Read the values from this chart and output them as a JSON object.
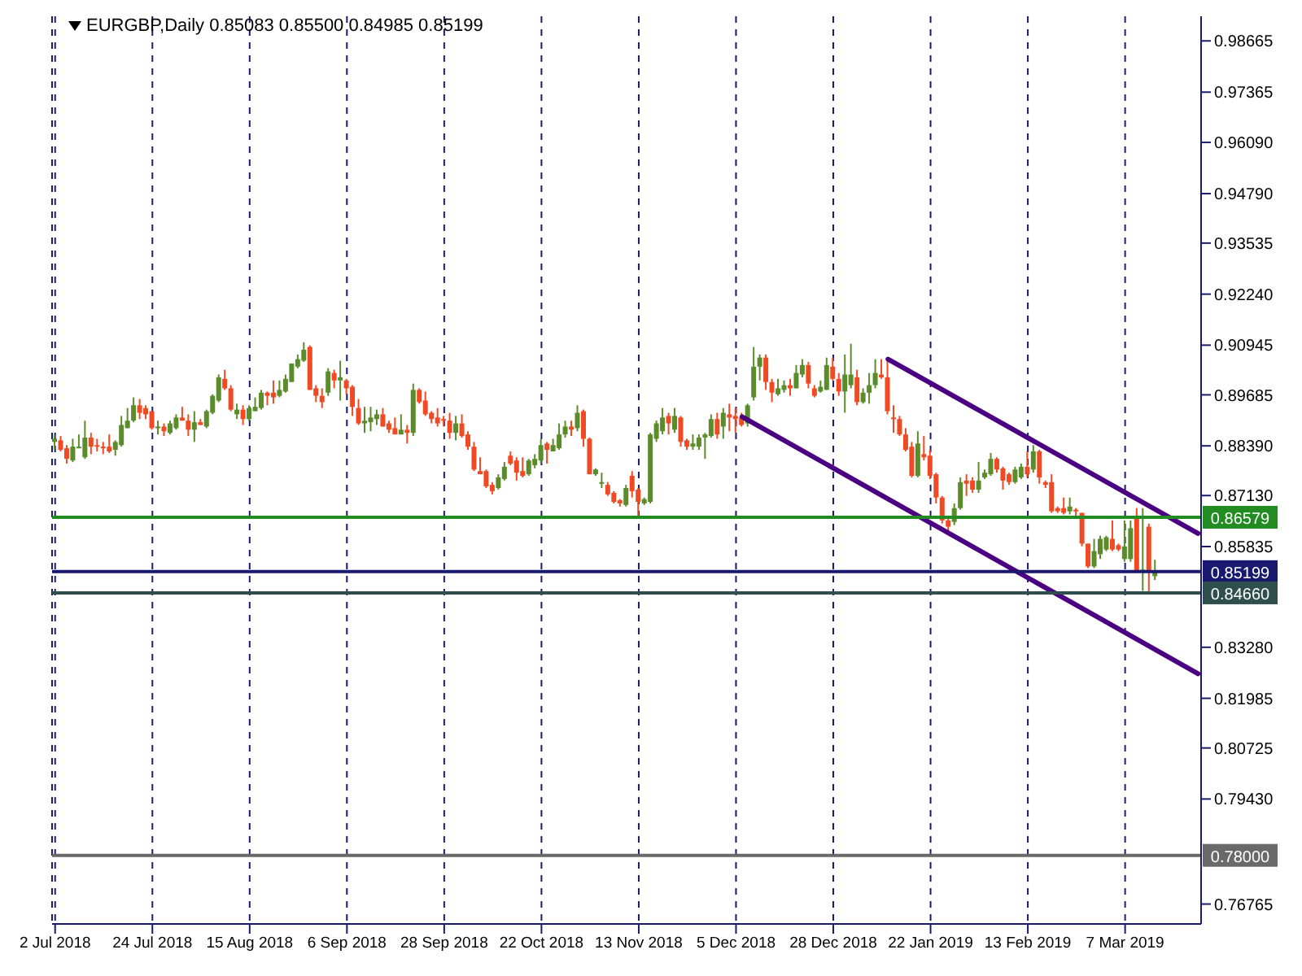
{
  "chart_data": {
    "type": "candlestick",
    "title": "EURGBP,Daily  0.85083 0.85500 0.84985 0.85199",
    "categories": [
      "2 Jul 2018",
      null,
      null,
      null,
      null,
      null,
      null,
      null,
      null,
      null,
      null,
      null,
      null,
      null,
      null,
      null,
      "24 Jul 2018",
      null,
      null,
      null,
      null,
      null,
      null,
      null,
      null,
      null,
      null,
      null,
      null,
      null,
      null,
      null,
      "15 Aug 2018",
      null,
      null,
      null,
      null,
      null,
      null,
      null,
      null,
      null,
      null,
      null,
      null,
      null,
      null,
      null,
      "6 Sep 2018",
      null,
      null,
      null,
      null,
      null,
      null,
      null,
      null,
      null,
      null,
      null,
      null,
      null,
      null,
      null,
      "28 Sep 2018",
      null,
      null,
      null,
      null,
      null,
      null,
      null,
      null,
      null,
      null,
      null,
      null,
      null,
      null,
      null,
      "22 Oct 2018",
      null,
      null,
      null,
      null,
      null,
      null,
      null,
      null,
      null,
      null,
      null,
      null,
      null,
      null,
      null,
      "13 Nov 2018",
      null,
      null,
      null,
      null,
      null,
      null,
      null,
      null,
      null,
      null,
      null,
      null,
      null,
      null,
      null,
      "5 Dec 2018",
      null,
      null,
      null,
      null,
      null,
      null,
      null,
      null,
      null,
      null,
      null,
      null,
      null,
      null,
      null,
      "28 Dec 2018",
      null,
      null,
      null,
      null,
      null,
      null,
      null,
      null,
      null,
      null,
      null,
      null,
      null,
      null,
      null,
      "22 Jan 2019",
      null,
      null,
      null,
      null,
      null,
      null,
      null,
      null,
      null,
      null,
      null,
      null,
      null,
      null,
      null,
      "13 Feb 2019",
      null,
      null,
      null,
      null,
      null,
      null,
      null,
      null,
      null,
      null,
      null,
      null,
      null,
      null,
      null,
      "7 Mar 2019",
      null,
      null,
      null,
      null,
      null,
      null,
      null,
      null,
      null,
      null,
      null,
      null
    ],
    "ohlc": [
      [
        0.8849,
        0.8868,
        0.8829,
        0.8857
      ],
      [
        0.8853,
        0.8864,
        0.8825,
        0.8829
      ],
      [
        0.8833,
        0.8841,
        0.8794,
        0.8806
      ],
      [
        0.8802,
        0.8857,
        0.8798,
        0.8837
      ],
      [
        0.8833,
        0.8868,
        0.8833,
        0.8837
      ],
      [
        0.881,
        0.8903,
        0.8806,
        0.886
      ],
      [
        0.886,
        0.8872,
        0.8818,
        0.8837
      ],
      [
        0.8841,
        0.8857,
        0.8825,
        0.8837
      ],
      [
        0.8837,
        0.8849,
        0.8818,
        0.8833
      ],
      [
        0.8837,
        0.8868,
        0.8821,
        0.8825
      ],
      [
        0.8829,
        0.8853,
        0.8814,
        0.8849
      ],
      [
        0.8841,
        0.8915,
        0.8837,
        0.8892
      ],
      [
        0.8884,
        0.8935,
        0.8884,
        0.8903
      ],
      [
        0.8903,
        0.8962,
        0.8899,
        0.8942
      ],
      [
        0.8942,
        0.8958,
        0.8907,
        0.8923
      ],
      [
        0.8935,
        0.8942,
        0.8907,
        0.8919
      ],
      [
        0.8927,
        0.8927,
        0.888,
        0.8884
      ],
      [
        0.8884,
        0.8903,
        0.8868,
        0.8888
      ],
      [
        0.8888,
        0.8896,
        0.8864,
        0.8876
      ],
      [
        0.8872,
        0.8903,
        0.8868,
        0.8896
      ],
      [
        0.8884,
        0.8919,
        0.888,
        0.8911
      ],
      [
        0.8911,
        0.8938,
        0.8903,
        0.8903
      ],
      [
        0.8903,
        0.8919,
        0.8864,
        0.888
      ],
      [
        0.888,
        0.8927,
        0.8849,
        0.8899
      ],
      [
        0.8899,
        0.8907,
        0.8892,
        0.8892
      ],
      [
        0.8888,
        0.8931,
        0.8884,
        0.8927
      ],
      [
        0.8923,
        0.897,
        0.8919,
        0.8966
      ],
      [
        0.8954,
        0.902,
        0.895,
        0.9013
      ],
      [
        0.9009,
        0.9032,
        0.8981,
        0.8985
      ],
      [
        0.8985,
        0.8993,
        0.8927,
        0.8931
      ],
      [
        0.8919,
        0.8946,
        0.8907,
        0.8931
      ],
      [
        0.8931,
        0.8942,
        0.8892,
        0.8907
      ],
      [
        0.8907,
        0.8942,
        0.8903,
        0.8935
      ],
      [
        0.8927,
        0.8962,
        0.8927,
        0.8938
      ],
      [
        0.8935,
        0.8981,
        0.8931,
        0.8974
      ],
      [
        0.8974,
        0.8977,
        0.8942,
        0.8966
      ],
      [
        0.8974,
        0.9005,
        0.8946,
        0.8962
      ],
      [
        0.8966,
        0.9005,
        0.8962,
        0.8981
      ],
      [
        0.8977,
        0.902,
        0.8974,
        0.9009
      ],
      [
        0.9001,
        0.9048,
        0.9001,
        0.9048
      ],
      [
        0.904,
        0.9071,
        0.9036,
        0.9059
      ],
      [
        0.9055,
        0.9102,
        0.9052,
        0.9083
      ],
      [
        0.909,
        0.9094,
        0.8981,
        0.8981
      ],
      [
        0.8985,
        0.8993,
        0.895,
        0.8966
      ],
      [
        0.8966,
        0.8985,
        0.8935,
        0.895
      ],
      [
        0.8974,
        0.9036,
        0.8966,
        0.9028
      ],
      [
        0.9024,
        0.9032,
        0.8985,
        0.9005
      ],
      [
        0.9005,
        0.9055,
        0.8954,
        0.9013
      ],
      [
        0.9005,
        0.9009,
        0.897,
        0.8985
      ],
      [
        0.8989,
        0.8993,
        0.8915,
        0.8938
      ],
      [
        0.8935,
        0.8958,
        0.8892,
        0.8896
      ],
      [
        0.8896,
        0.8938,
        0.8872,
        0.8903
      ],
      [
        0.8899,
        0.8938,
        0.8876,
        0.8911
      ],
      [
        0.8907,
        0.8931,
        0.8892,
        0.8919
      ],
      [
        0.8919,
        0.8935,
        0.8888,
        0.8888
      ],
      [
        0.8896,
        0.8903,
        0.8872,
        0.888
      ],
      [
        0.8884,
        0.8911,
        0.8868,
        0.8868
      ],
      [
        0.8868,
        0.8919,
        0.8868,
        0.888
      ],
      [
        0.888,
        0.8892,
        0.8845,
        0.8872
      ],
      [
        0.8872,
        0.8997,
        0.8864,
        0.8981
      ],
      [
        0.8981,
        0.8985,
        0.8946,
        0.895
      ],
      [
        0.8954,
        0.8977,
        0.8915,
        0.8919
      ],
      [
        0.8923,
        0.8927,
        0.8896,
        0.8907
      ],
      [
        0.8911,
        0.8935,
        0.8888,
        0.8896
      ],
      [
        0.8907,
        0.8915,
        0.8888,
        0.8903
      ],
      [
        0.8903,
        0.8923,
        0.8857,
        0.8872
      ],
      [
        0.8872,
        0.8915,
        0.8853,
        0.8896
      ],
      [
        0.8896,
        0.8919,
        0.886,
        0.8864
      ],
      [
        0.8868,
        0.8876,
        0.8829,
        0.8837
      ],
      [
        0.8837,
        0.8849,
        0.8775,
        0.8779
      ],
      [
        0.8775,
        0.881,
        0.8767,
        0.8767
      ],
      [
        0.8775,
        0.8779,
        0.8732,
        0.8736
      ],
      [
        0.874,
        0.8747,
        0.8716,
        0.8724
      ],
      [
        0.8732,
        0.8767,
        0.8728,
        0.8759
      ],
      [
        0.8755,
        0.8798,
        0.8751,
        0.8786
      ],
      [
        0.8814,
        0.8825,
        0.879,
        0.8794
      ],
      [
        0.8802,
        0.881,
        0.8751,
        0.8771
      ],
      [
        0.8775,
        0.881,
        0.8759,
        0.8763
      ],
      [
        0.8767,
        0.8806,
        0.8763,
        0.8802
      ],
      [
        0.879,
        0.8818,
        0.8782,
        0.8806
      ],
      [
        0.8802,
        0.8857,
        0.8794,
        0.8841
      ],
      [
        0.8845,
        0.8849,
        0.8794,
        0.8829
      ],
      [
        0.8825,
        0.8857,
        0.8825,
        0.8841
      ],
      [
        0.8833,
        0.8896,
        0.8829,
        0.8868
      ],
      [
        0.8868,
        0.8903,
        0.886,
        0.8888
      ],
      [
        0.8888,
        0.8903,
        0.8864,
        0.888
      ],
      [
        0.8884,
        0.8942,
        0.8876,
        0.8923
      ],
      [
        0.8927,
        0.8931,
        0.8837,
        0.8857
      ],
      [
        0.8857,
        0.886,
        0.8767,
        0.8767
      ],
      [
        0.8767,
        0.8782,
        0.8763,
        0.8779
      ],
      [
        0.8743,
        0.8771,
        0.8732,
        0.8747
      ],
      [
        0.874,
        0.8747,
        0.8712,
        0.8716
      ],
      [
        0.872,
        0.8724,
        0.8693,
        0.8697
      ],
      [
        0.8701,
        0.8704,
        0.8685,
        0.8693
      ],
      [
        0.8689,
        0.874,
        0.8685,
        0.8732
      ],
      [
        0.8763,
        0.8775,
        0.8708,
        0.8724
      ],
      [
        0.8728,
        0.8732,
        0.8654,
        0.8697
      ],
      [
        0.8693,
        0.8708,
        0.8689,
        0.8704
      ],
      [
        0.8697,
        0.8872,
        0.8693,
        0.8868
      ],
      [
        0.8857,
        0.8903,
        0.8849,
        0.8896
      ],
      [
        0.8876,
        0.8935,
        0.8868,
        0.8911
      ],
      [
        0.8915,
        0.8923,
        0.8868,
        0.8896
      ],
      [
        0.888,
        0.8935,
        0.8872,
        0.8915
      ],
      [
        0.8911,
        0.8915,
        0.8837,
        0.8849
      ],
      [
        0.8853,
        0.8857,
        0.8829,
        0.8837
      ],
      [
        0.8837,
        0.8868,
        0.8829,
        0.8845
      ],
      [
        0.8837,
        0.8868,
        0.8829,
        0.886
      ],
      [
        0.886,
        0.8872,
        0.8806,
        0.8868
      ],
      [
        0.8864,
        0.8919,
        0.886,
        0.8907
      ],
      [
        0.8907,
        0.8923,
        0.8857,
        0.8868
      ],
      [
        0.8888,
        0.8935,
        0.8857,
        0.8923
      ],
      [
        0.8919,
        0.8946,
        0.8876,
        0.8911
      ],
      [
        0.8915,
        0.8935,
        0.8872,
        0.8907
      ],
      [
        0.8911,
        0.8923,
        0.8888,
        0.8892
      ],
      [
        0.8896,
        0.8946,
        0.8888,
        0.8942
      ],
      [
        0.8962,
        0.909,
        0.8954,
        0.904
      ],
      [
        0.904,
        0.9071,
        0.9005,
        0.9063
      ],
      [
        0.9063,
        0.9071,
        0.8981,
        0.9001
      ],
      [
        0.9001,
        0.9009,
        0.895,
        0.8974
      ],
      [
        0.897,
        0.9009,
        0.8966,
        0.8985
      ],
      [
        0.8981,
        0.9005,
        0.8974,
        0.8993
      ],
      [
        0.8993,
        0.9009,
        0.8966,
        0.8985
      ],
      [
        0.8985,
        0.9044,
        0.8985,
        0.9024
      ],
      [
        0.902,
        0.9059,
        0.9013,
        0.9044
      ],
      [
        0.9044,
        0.9052,
        0.8985,
        0.8997
      ],
      [
        0.8985,
        0.8993,
        0.8962,
        0.8966
      ],
      [
        0.8977,
        0.9005,
        0.8974,
        0.8989
      ],
      [
        0.8981,
        0.9063,
        0.8981,
        0.9044
      ],
      [
        0.904,
        0.9063,
        0.9005,
        0.9009
      ],
      [
        0.9009,
        0.9024,
        0.8966,
        0.8977
      ],
      [
        0.8977,
        0.9071,
        0.8923,
        0.902
      ],
      [
        0.8993,
        0.9098,
        0.8985,
        0.902
      ],
      [
        0.9013,
        0.9032,
        0.8942,
        0.895
      ],
      [
        0.895,
        0.8985,
        0.8946,
        0.8974
      ],
      [
        0.8974,
        0.9024,
        0.8946,
        0.8993
      ],
      [
        0.8993,
        0.9059,
        0.8985,
        0.9024
      ],
      [
        0.902,
        0.9059,
        0.9009,
        0.9013
      ],
      [
        0.9013,
        0.9063,
        0.8919,
        0.8927
      ],
      [
        0.8911,
        0.8942,
        0.8872,
        0.8907
      ],
      [
        0.8907,
        0.8915,
        0.8864,
        0.8868
      ],
      [
        0.8868,
        0.8884,
        0.8825,
        0.8829
      ],
      [
        0.8837,
        0.8849,
        0.8759,
        0.8763
      ],
      [
        0.8763,
        0.8876,
        0.8759,
        0.8845
      ],
      [
        0.8818,
        0.8864,
        0.8802,
        0.881
      ],
      [
        0.8814,
        0.8829,
        0.8755,
        0.8763
      ],
      [
        0.8767,
        0.8771,
        0.8693,
        0.8708
      ],
      [
        0.8708,
        0.8712,
        0.8642,
        0.865
      ],
      [
        0.865,
        0.8658,
        0.8615,
        0.8634
      ],
      [
        0.8646,
        0.8693,
        0.8638,
        0.8681
      ],
      [
        0.8681,
        0.8759,
        0.8677,
        0.8747
      ],
      [
        0.8751,
        0.8767,
        0.8712,
        0.8743
      ],
      [
        0.8751,
        0.8759,
        0.872,
        0.8728
      ],
      [
        0.8728,
        0.8798,
        0.872,
        0.8751
      ],
      [
        0.8759,
        0.8779,
        0.8755,
        0.8771
      ],
      [
        0.8767,
        0.8821,
        0.8763,
        0.8806
      ],
      [
        0.8806,
        0.881,
        0.8771,
        0.8779
      ],
      [
        0.8782,
        0.8786,
        0.8728,
        0.8751
      ],
      [
        0.8767,
        0.8771,
        0.874,
        0.8747
      ],
      [
        0.8747,
        0.8786,
        0.8743,
        0.8779
      ],
      [
        0.8759,
        0.8794,
        0.8755,
        0.8786
      ],
      [
        0.8786,
        0.8825,
        0.8759,
        0.8767
      ],
      [
        0.8779,
        0.8841,
        0.8771,
        0.8825
      ],
      [
        0.8825,
        0.8829,
        0.8743,
        0.8759
      ],
      [
        0.8747,
        0.8751,
        0.8732,
        0.874
      ],
      [
        0.8747,
        0.8767,
        0.8669,
        0.8673
      ],
      [
        0.8681,
        0.8685,
        0.8669,
        0.8673
      ],
      [
        0.8681,
        0.8708,
        0.8665,
        0.8669
      ],
      [
        0.8673,
        0.8708,
        0.8665,
        0.8685
      ],
      [
        0.8677,
        0.8681,
        0.8662,
        0.8673
      ],
      [
        0.8669,
        0.8669,
        0.8584,
        0.8591
      ],
      [
        0.8591,
        0.8591,
        0.8529,
        0.8533
      ],
      [
        0.8533,
        0.8603,
        0.8529,
        0.8572
      ],
      [
        0.8564,
        0.8611,
        0.8552,
        0.8603
      ],
      [
        0.8576,
        0.8611,
        0.8572,
        0.8607
      ],
      [
        0.8603,
        0.865,
        0.8572,
        0.8576
      ],
      [
        0.8587,
        0.8591,
        0.8572,
        0.8576
      ],
      [
        0.8552,
        0.865,
        0.8545,
        0.8584
      ],
      [
        0.8552,
        0.865,
        0.8545,
        0.863
      ],
      [
        0.8654,
        0.8681,
        0.8517,
        0.8521
      ],
      [
        0.8521,
        0.8681,
        0.8471,
        0.8525
      ],
      [
        0.8634,
        0.8642,
        0.8467,
        0.8521
      ],
      [
        0.85083,
        0.855,
        0.84985,
        0.85199
      ],
      null,
      null,
      null,
      null,
      null,
      null,
      null
    ],
    "colors": [
      "#5b8c2c",
      "#f04a25",
      "#f04a25",
      "#5b8c2c",
      "#5b8c2c",
      "#5b8c2c",
      "#f04a25",
      "#f04a25",
      "#f04a25",
      "#f04a25",
      "#5b8c2c",
      "#5b8c2c",
      "#5b8c2c",
      "#5b8c2c",
      "#f04a25",
      "#f04a25",
      "#f04a25",
      "#5b8c2c",
      "#f04a25",
      "#5b8c2c",
      "#5b8c2c",
      "#f04a25",
      "#f04a25",
      "#5b8c2c",
      "#f04a25",
      "#5b8c2c",
      "#5b8c2c",
      "#5b8c2c",
      "#f04a25",
      "#f04a25",
      "#5b8c2c",
      "#f04a25",
      "#5b8c2c",
      "#5b8c2c",
      "#5b8c2c",
      "#f04a25",
      "#f04a25",
      "#5b8c2c",
      "#5b8c2c",
      "#5b8c2c",
      "#5b8c2c",
      "#5b8c2c",
      "#f04a25",
      "#f04a25",
      "#f04a25",
      "#5b8c2c",
      "#f04a25",
      "#5b8c2c",
      "#f04a25",
      "#f04a25",
      "#f04a25",
      "#5b8c2c",
      "#5b8c2c",
      "#5b8c2c",
      "#f04a25",
      "#f04a25",
      "#f04a25",
      "#5b8c2c",
      "#f04a25",
      "#5b8c2c",
      "#f04a25",
      "#f04a25",
      "#f04a25",
      "#f04a25",
      "#f04a25",
      "#f04a25",
      "#5b8c2c",
      "#f04a25",
      "#f04a25",
      "#f04a25",
      "#f04a25",
      "#f04a25",
      "#f04a25",
      "#5b8c2c",
      "#5b8c2c",
      "#f04a25",
      "#f04a25",
      "#f04a25",
      "#5b8c2c",
      "#5b8c2c",
      "#5b8c2c",
      "#f04a25",
      "#5b8c2c",
      "#5b8c2c",
      "#5b8c2c",
      "#f04a25",
      "#5b8c2c",
      "#f04a25",
      "#f04a25",
      "#5b8c2c",
      "#5b8c2c",
      "#f04a25",
      "#f04a25",
      "#f04a25",
      "#5b8c2c",
      "#f04a25",
      "#f04a25",
      "#5b8c2c",
      "#5b8c2c",
      "#5b8c2c",
      "#5b8c2c",
      "#f04a25",
      "#5b8c2c",
      "#f04a25",
      "#f04a25",
      "#5b8c2c",
      "#5b8c2c",
      "#5b8c2c",
      "#5b8c2c",
      "#f04a25",
      "#5b8c2c",
      "#f04a25",
      "#f04a25",
      "#f04a25",
      "#5b8c2c",
      "#5b8c2c",
      "#5b8c2c",
      "#f04a25",
      "#f04a25",
      "#5b8c2c",
      "#5b8c2c",
      "#f04a25",
      "#5b8c2c",
      "#5b8c2c",
      "#f04a25",
      "#f04a25",
      "#5b8c2c",
      "#5b8c2c",
      "#f04a25",
      "#f04a25",
      "#5b8c2c",
      "#5b8c2c",
      "#f04a25",
      "#5b8c2c",
      "#5b8c2c",
      "#5b8c2c",
      "#f04a25",
      "#f04a25",
      "#f04a25",
      "#f04a25",
      "#f04a25",
      "#f04a25",
      "#5b8c2c",
      "#f04a25",
      "#f04a25",
      "#f04a25",
      "#f04a25",
      "#f04a25",
      "#5b8c2c",
      "#5b8c2c",
      "#f04a25",
      "#f04a25",
      "#5b8c2c",
      "#5b8c2c",
      "#5b8c2c",
      "#f04a25",
      "#f04a25",
      "#f04a25",
      "#5b8c2c",
      "#5b8c2c",
      "#f04a25",
      "#5b8c2c",
      "#f04a25",
      "#f04a25",
      "#f04a25",
      "#f04a25",
      "#f04a25",
      "#5b8c2c",
      "#f04a25",
      "#f04a25",
      "#f04a25",
      "#5b8c2c",
      "#5b8c2c",
      "#5b8c2c",
      "#f04a25",
      "#f04a25",
      "#5b8c2c",
      "#5b8c2c",
      "#f04a25",
      "#5b8c2c",
      "#f04a25",
      "#5b8c2c",
      null,
      null,
      null,
      null,
      null,
      null,
      null
    ],
    "series": [
      {
        "type": "line",
        "color": "#4b0082",
        "values": [
          null,
          null,
          null,
          null,
          null,
          null,
          null,
          null,
          null,
          null,
          null,
          null,
          null,
          null,
          null,
          null,
          null,
          null,
          null,
          null,
          null,
          null,
          null,
          null,
          null,
          null,
          null,
          null,
          null,
          null,
          null,
          null,
          null,
          null,
          null,
          null,
          null,
          null,
          null,
          null,
          null,
          null,
          null,
          null,
          null,
          null,
          null,
          null,
          null,
          null,
          null,
          null,
          null,
          null,
          null,
          null,
          null,
          null,
          null,
          null,
          null,
          null,
          null,
          null,
          null,
          null,
          null,
          null,
          null,
          null,
          null,
          null,
          null,
          null,
          null,
          null,
          null,
          null,
          null,
          null,
          null,
          null,
          null,
          null,
          null,
          null,
          null,
          null,
          null,
          null,
          null,
          null,
          null,
          null,
          null,
          null,
          null,
          null,
          null,
          null,
          null,
          null,
          null,
          null,
          null,
          null,
          null,
          null,
          null,
          null,
          null,
          null,
          null,
          null,
          null,
          null,
          null,
          null,
          null,
          null,
          null,
          null,
          null,
          null,
          null,
          null,
          null,
          null,
          null,
          null,
          null,
          null,
          null,
          null,
          null,
          null,
          null,
          0.9059,
          null,
          null,
          null,
          null,
          null,
          null,
          null,
          null,
          null,
          null,
          null,
          null,
          null,
          null,
          null,
          null,
          null,
          null,
          null,
          null,
          null,
          null,
          null,
          null,
          null,
          null,
          null,
          null,
          null,
          null,
          null,
          null,
          null,
          null,
          null,
          null,
          null,
          null,
          null,
          null,
          null,
          null,
          null,
          null,
          null,
          null,
          null,
          null,
          null,
          null,
          0.8617
        ]
      },
      {
        "type": "line",
        "color": "#4b0082",
        "values": [
          null,
          null,
          null,
          null,
          null,
          null,
          null,
          null,
          null,
          null,
          null,
          null,
          null,
          null,
          null,
          null,
          null,
          null,
          null,
          null,
          null,
          null,
          null,
          null,
          null,
          null,
          null,
          null,
          null,
          null,
          null,
          null,
          null,
          null,
          null,
          null,
          null,
          null,
          null,
          null,
          null,
          null,
          null,
          null,
          null,
          null,
          null,
          null,
          null,
          null,
          null,
          null,
          null,
          null,
          null,
          null,
          null,
          null,
          null,
          null,
          null,
          null,
          null,
          null,
          null,
          null,
          null,
          null,
          null,
          null,
          null,
          null,
          null,
          null,
          null,
          null,
          null,
          null,
          null,
          null,
          null,
          null,
          null,
          null,
          null,
          null,
          null,
          null,
          null,
          null,
          null,
          null,
          null,
          null,
          null,
          null,
          null,
          null,
          null,
          null,
          null,
          null,
          null,
          null,
          null,
          null,
          null,
          null,
          null,
          null,
          null,
          null,
          null,
          0.8913,
          null,
          null,
          null,
          null,
          null,
          null,
          null,
          null,
          null,
          null,
          null,
          null,
          null,
          null,
          null,
          null,
          null,
          null,
          null,
          null,
          null,
          null,
          null,
          null,
          null,
          null,
          null,
          null,
          null,
          null,
          null,
          null,
          null,
          null,
          null,
          null,
          null,
          null,
          null,
          null,
          null,
          null,
          null,
          null,
          null,
          null,
          null,
          null,
          null,
          null,
          null,
          null,
          null,
          null,
          null,
          null,
          null,
          null,
          null,
          null,
          null,
          null,
          null,
          null,
          null,
          null,
          null,
          null,
          null,
          null,
          null,
          null,
          null,
          null,
          0.8261
        ]
      }
    ],
    "ylim": [
      0.7626,
      0.9929
    ],
    "yticks": [
      0.98665,
      0.97365,
      {
        "value": 0.9609,
        "label": "0.96090"
      },
      {
        "value": 0.9479,
        "label": "0.94790"
      },
      0.93535,
      {
        "value": 0.9224,
        "label": "0.92240"
      },
      0.90945,
      0.89685,
      {
        "value": 0.8839,
        "label": "0.88390"
      },
      {
        "value": 0.8713,
        "label": "0.87130"
      },
      0.85835,
      {
        "value": 0.8328,
        "label": "0.83280"
      },
      0.81985,
      0.80725,
      {
        "value": 0.7943,
        "label": "0.79430"
      },
      0.76765
    ],
    "grid": "x",
    "ref_lines": [
      {
        "axis": "y",
        "value": 0.86579,
        "label": "0.86579",
        "color": "#228b22"
      },
      {
        "axis": "y",
        "value": 0.85199,
        "label": "0.85199",
        "color": "#191970"
      },
      {
        "axis": "y",
        "value": 0.8466,
        "label": "0.84660",
        "color": "#2f4f4f"
      },
      {
        "axis": "y",
        "value": 0.78,
        "label": "0.78000",
        "color": "#696969"
      }
    ]
  }
}
